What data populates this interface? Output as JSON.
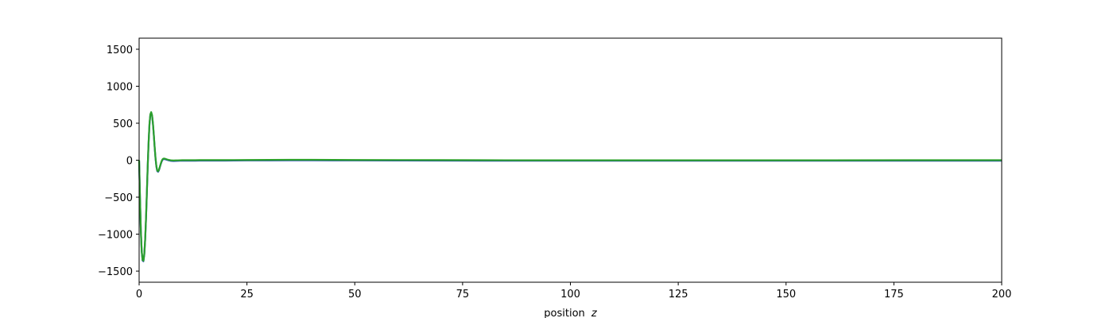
{
  "chart_data": {
    "type": "line",
    "title": "",
    "xlabel": "position",
    "xlabel_var": "z",
    "ylabel": "",
    "xlim": [
      0,
      200
    ],
    "ylim": [
      -1650,
      1650
    ],
    "xticks": [
      0,
      25,
      50,
      75,
      100,
      125,
      150,
      175,
      200
    ],
    "yticks": [
      -1500,
      -1000,
      -500,
      0,
      500,
      1000,
      1500
    ],
    "xtick_labels": [
      "0",
      "25",
      "50",
      "75",
      "100",
      "125",
      "150",
      "175",
      "200"
    ],
    "ytick_labels": [
      "−1500",
      "−1000",
      "−500",
      "0",
      "500",
      "1000",
      "1500"
    ],
    "grid": false,
    "legend": "none",
    "line_color": "#2ca02c",
    "under_line_color": "#1f3fbf",
    "series": [
      {
        "x": [
          0,
          0.2,
          0.4,
          0.6,
          0.8,
          1.0,
          1.2,
          1.4,
          1.6,
          1.8,
          2.0,
          2.2,
          2.4,
          2.6,
          2.8,
          3.0,
          3.2,
          3.4,
          3.6,
          3.8,
          4.0,
          4.2,
          4.4,
          4.6,
          4.8,
          5.0,
          5.2,
          5.4,
          5.6,
          5.8,
          6.0,
          6.4,
          6.8,
          7.2,
          7.6,
          8.0,
          8.5,
          9.0,
          9.5,
          10,
          11,
          12,
          13,
          14,
          16,
          18,
          20,
          22,
          25,
          30,
          35,
          40,
          45,
          50,
          60,
          70,
          80,
          90,
          100,
          120,
          140,
          160,
          180,
          200
        ],
        "values": [
          0,
          -500,
          -950,
          -1230,
          -1350,
          -1360,
          -1270,
          -1070,
          -780,
          -430,
          -60,
          250,
          490,
          620,
          650,
          610,
          500,
          350,
          180,
          30,
          -80,
          -140,
          -150,
          -130,
          -90,
          -50,
          -15,
          10,
          20,
          22,
          20,
          12,
          5,
          0,
          -3,
          -4,
          -3,
          -2,
          -1,
          0,
          0,
          0,
          0,
          1,
          1,
          1,
          1,
          2,
          3,
          4,
          5,
          5,
          4,
          3,
          2,
          1,
          0,
          -1,
          -1,
          -1,
          -1,
          -1,
          0,
          0
        ]
      }
    ]
  }
}
